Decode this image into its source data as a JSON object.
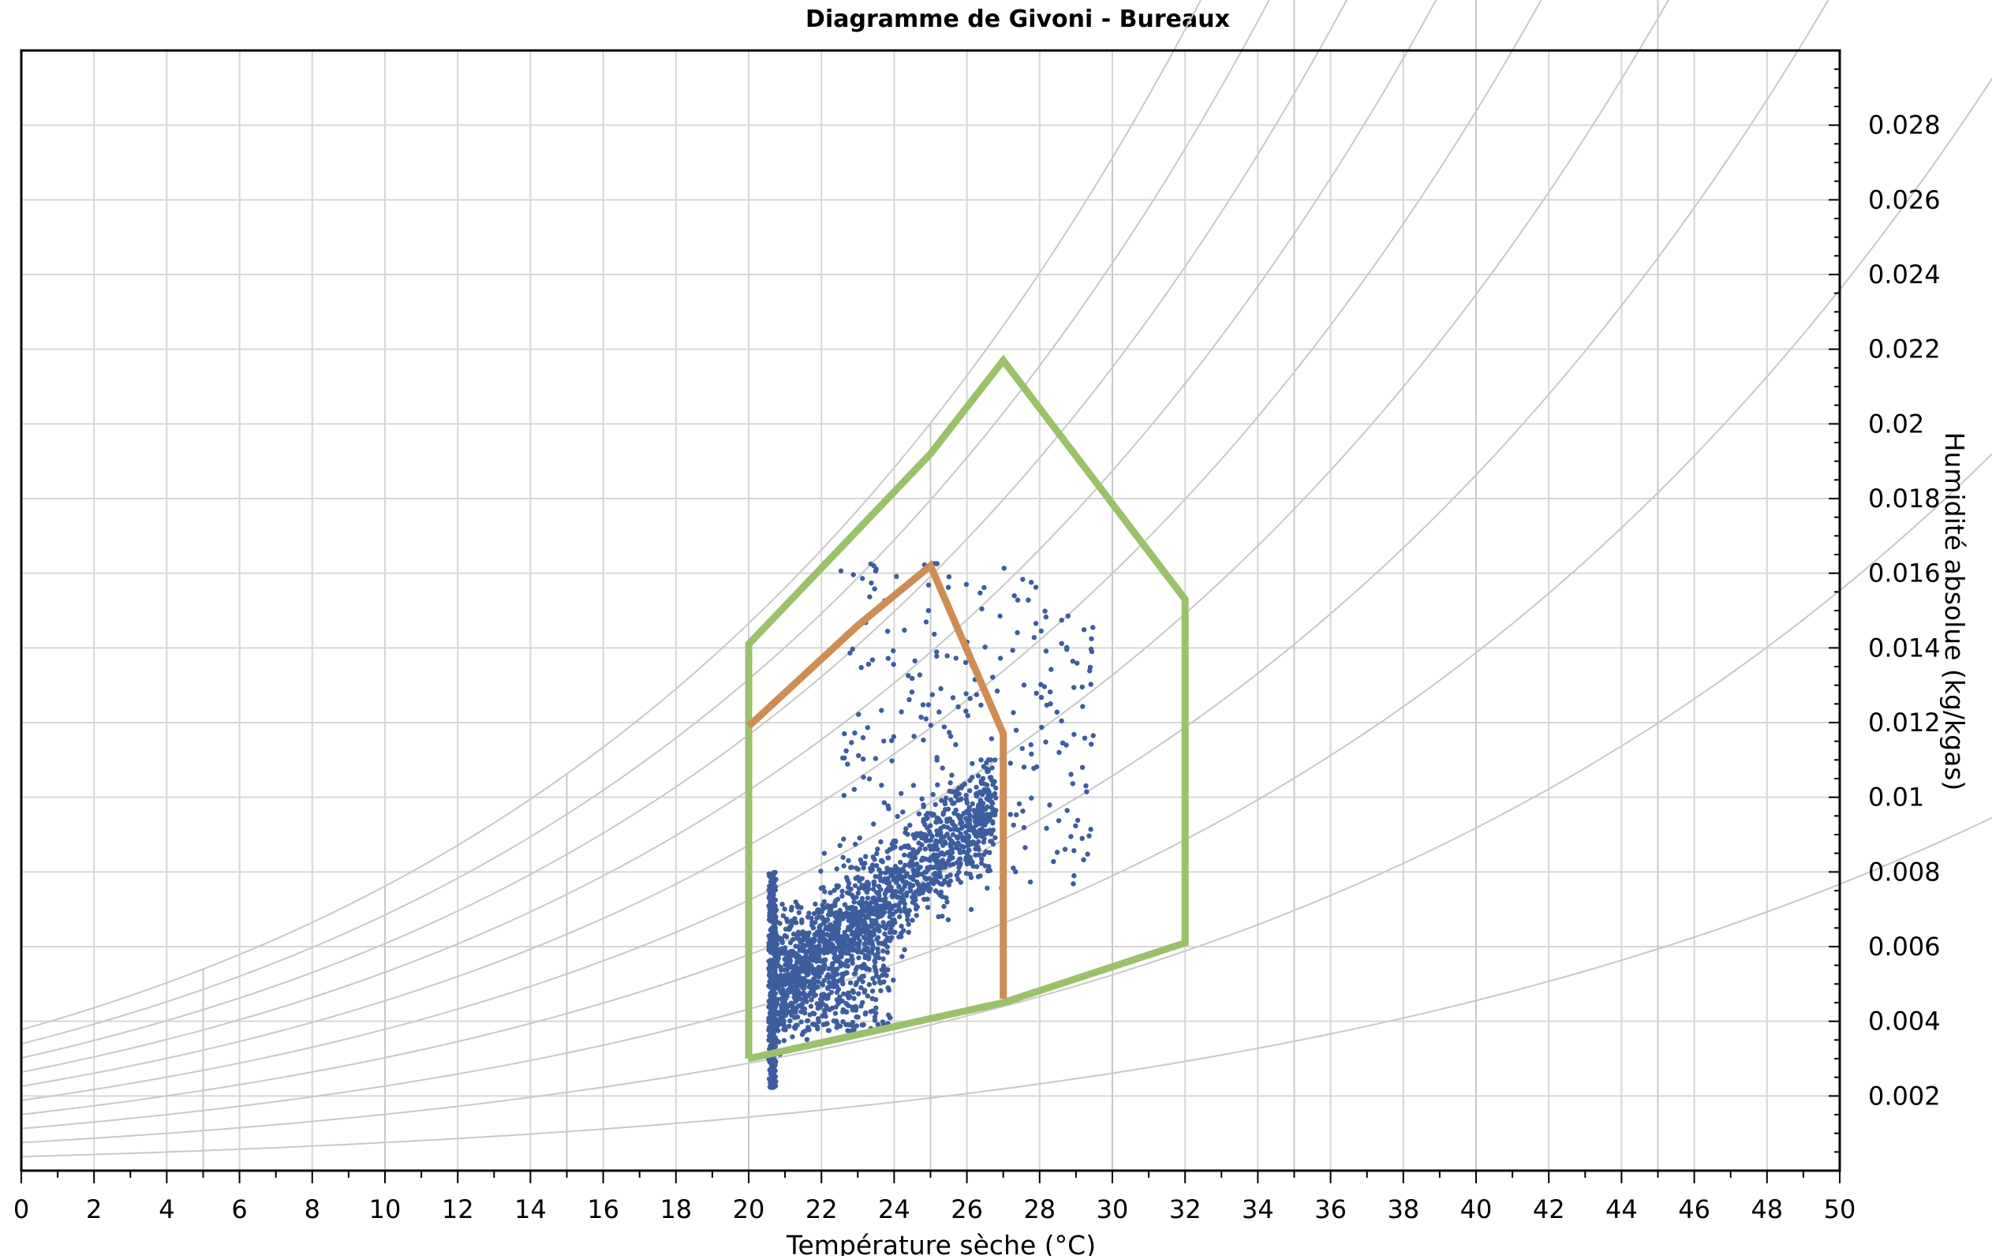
{
  "chart_data": {
    "type": "scatter",
    "title": "Diagramme de Givoni - Bureaux",
    "xlabel": "Température sèche (°C)",
    "ylabel": "Humidité absolue (kg/kgas)",
    "xlim": [
      0,
      50
    ],
    "ylim": [
      0,
      0.03
    ],
    "x_ticks": [
      "0",
      "2",
      "4",
      "6",
      "8",
      "10",
      "12",
      "14",
      "16",
      "18",
      "20",
      "22",
      "24",
      "26",
      "28",
      "30",
      "32",
      "34",
      "36",
      "38",
      "40",
      "42",
      "44",
      "46",
      "48",
      "50"
    ],
    "y_ticks": [
      "0.002",
      "0.004",
      "0.006",
      "0.008",
      "0.01",
      "0.012",
      "0.014",
      "0.016",
      "0.018",
      "0.02",
      "0.022",
      "0.024",
      "0.026",
      "0.028"
    ],
    "y_axis_position": "right",
    "grid": true,
    "background_curves": "relative-humidity curves (10% to 100%) and wet-bulb lines",
    "zones": [
      {
        "color": "#9bc16b",
        "points": [
          [
            20,
            0.003
          ],
          [
            27,
            0.0045
          ],
          [
            32,
            0.0061
          ],
          [
            32,
            0.0153
          ],
          [
            27,
            0.0217
          ],
          [
            25,
            0.0192
          ],
          [
            20,
            0.0141
          ],
          [
            20,
            0.003
          ]
        ]
      },
      {
        "color": "#cf8c55",
        "points": [
          [
            27,
            0.0046
          ],
          [
            27,
            0.0117
          ],
          [
            25,
            0.0162
          ],
          [
            23,
            0.0146
          ],
          [
            20,
            0.0119
          ]
        ]
      }
    ],
    "scatter": {
      "color": "#3d5d9e",
      "approx_count": 2500,
      "x_range": [
        20.4,
        29.6
      ],
      "y_range": [
        0.0021,
        0.0164
      ],
      "density_center": [
        23.5,
        0.0079
      ]
    },
    "colors": {
      "grid": "#d6d6d6",
      "curves": "#c8c8c8",
      "green_zone": "#9bc16b",
      "orange_zone": "#cf8c55",
      "points": "#3d5d9e"
    }
  }
}
